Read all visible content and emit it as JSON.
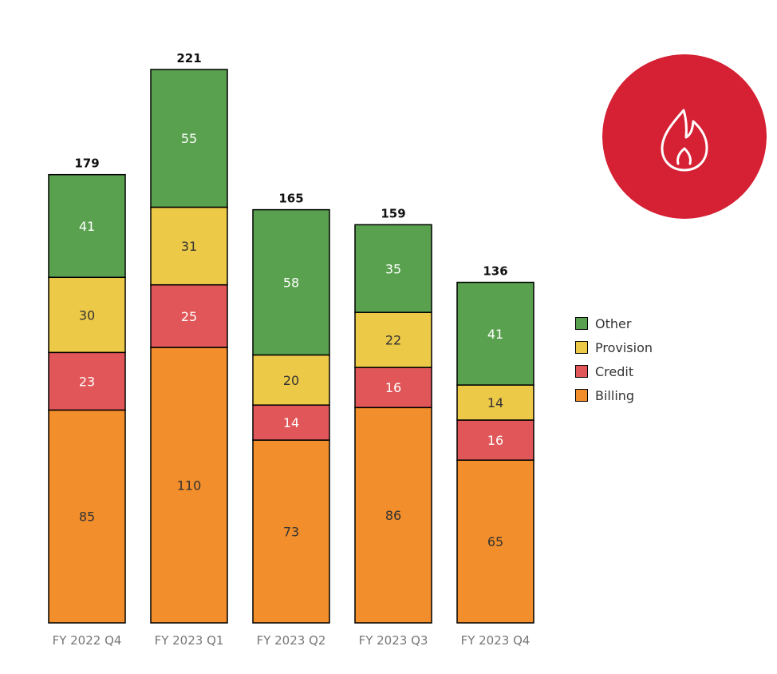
{
  "chart_data": {
    "type": "bar",
    "stacked": true,
    "categories": [
      "FY 2022 Q4",
      "FY 2023 Q1",
      "FY 2023 Q2",
      "FY 2023 Q3",
      "FY 2023 Q4"
    ],
    "series": [
      {
        "name": "Billing",
        "color": "#F28E2B",
        "label_color": "#333333",
        "values": [
          85,
          110,
          73,
          86,
          65
        ]
      },
      {
        "name": "Credit",
        "color": "#E15759",
        "label_color": "#FFFFFF",
        "values": [
          23,
          25,
          14,
          16,
          16
        ]
      },
      {
        "name": "Provision",
        "color": "#EDC948",
        "label_color": "#333333",
        "values": [
          30,
          31,
          20,
          22,
          14
        ]
      },
      {
        "name": "Other",
        "color": "#59A14F",
        "label_color": "#FFFFFF",
        "values": [
          41,
          55,
          58,
          35,
          41
        ]
      }
    ],
    "totals": [
      179,
      221,
      165,
      159,
      136
    ],
    "legend_order": [
      "Other",
      "Provision",
      "Credit",
      "Billing"
    ],
    "legend_position": "right",
    "ylim": [
      0,
      221
    ],
    "grid": false,
    "title": "",
    "xlabel": "",
    "ylabel": ""
  },
  "badge": {
    "icon": "flame-icon",
    "background": "#D62033",
    "icon_color": "#FFFFFF"
  }
}
